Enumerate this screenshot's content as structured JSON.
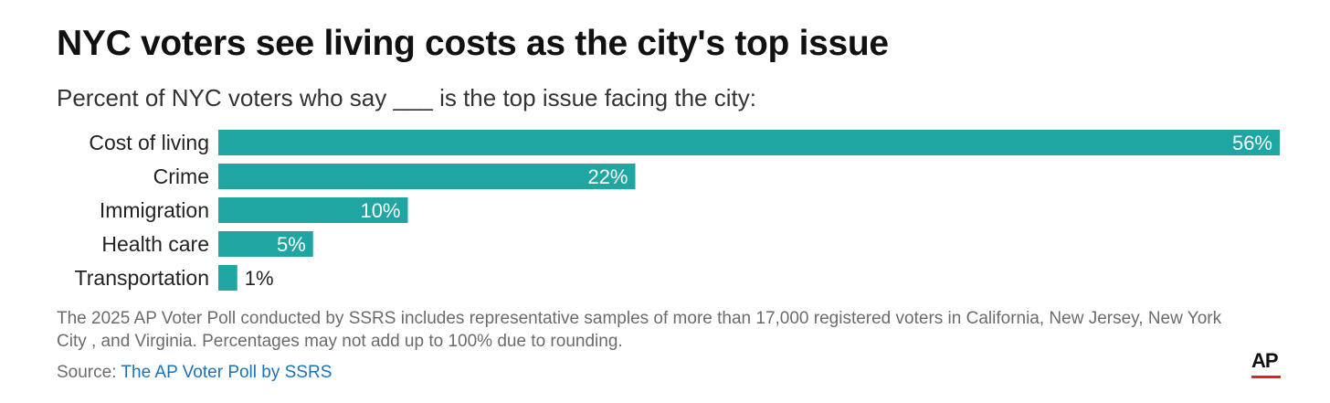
{
  "title": "NYC voters see living costs as the city's top issue",
  "subtitle": "Percent of NYC voters who say ___ is the top issue facing the city:",
  "chart_data": {
    "type": "bar",
    "orientation": "horizontal",
    "categories": [
      "Cost of living",
      "Crime",
      "Immigration",
      "Health care",
      "Transportation"
    ],
    "values": [
      56,
      22,
      10,
      5,
      1
    ],
    "value_labels": [
      "56%",
      "22%",
      "10%",
      "5%",
      "1%"
    ],
    "xlim": [
      0,
      56
    ],
    "unit": "%",
    "bar_color": "#20a6a2",
    "grid": false,
    "legend": "none"
  },
  "note": "The 2025 AP Voter Poll conducted by SSRS includes representative samples of more than 17,000 registered voters in California, New Jersey, New York City , and Virginia. Percentages may not add up to 100% due to rounding.",
  "source": {
    "label": "Source:",
    "link_text": "The AP Voter Poll by SSRS"
  },
  "logo": {
    "text": "AP",
    "accent_color": "#e2231a"
  }
}
